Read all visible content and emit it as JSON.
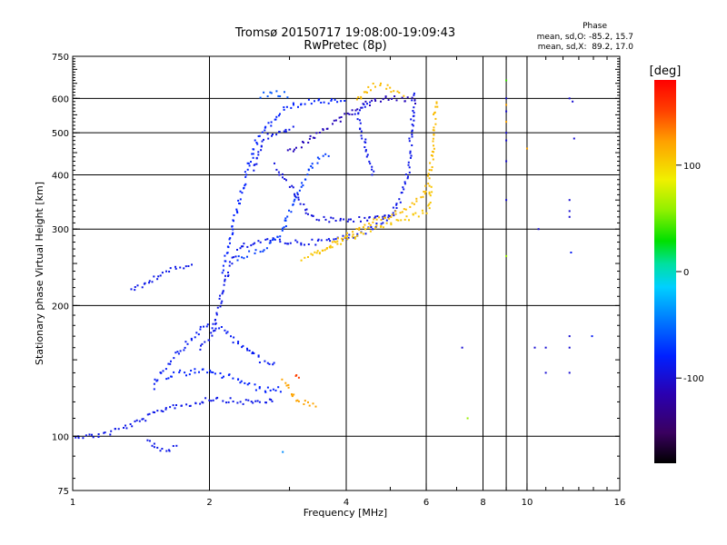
{
  "title": "Tromsø 20150717 19:08:00-19:09:43",
  "subtitle": "RwPretec (8p)",
  "phase_box": {
    "heading": "Phase",
    "line_o": "mean, sd,O: -85.2, 15.7",
    "line_x": "mean, sd,X:  89.2, 17.0"
  },
  "colorbar": {
    "title": "[deg]",
    "range": [
      -180,
      180
    ],
    "ticks": [
      {
        "value": 100,
        "label": "100"
      },
      {
        "value": 0,
        "label": "0"
      },
      {
        "value": -100,
        "label": "-100"
      }
    ]
  },
  "chart_data": {
    "type": "scatter",
    "xlabel": "Frequency [MHz]",
    "ylabel": "Stationary phase Virtual Height [km]",
    "x_scale": "log",
    "y_scale": "log",
    "xlim": [
      1,
      16
    ],
    "ylim": [
      75,
      750
    ],
    "grid": true,
    "x_ticks": [
      {
        "value": 1,
        "label": "1"
      },
      {
        "value": 2,
        "label": "2"
      },
      {
        "value": 4,
        "label": "4"
      },
      {
        "value": 6,
        "label": "6"
      },
      {
        "value": 8,
        "label": "8"
      },
      {
        "value": 10,
        "label": "10"
      },
      {
        "value": 16,
        "label": "16"
      }
    ],
    "x_grid": [
      2,
      4,
      6,
      8,
      9,
      10
    ],
    "y_ticks": [
      {
        "value": 75,
        "label": "75"
      },
      {
        "value": 100,
        "label": "100"
      },
      {
        "value": 200,
        "label": "200"
      },
      {
        "value": 300,
        "label": "300"
      },
      {
        "value": 400,
        "label": "400"
      },
      {
        "value": 500,
        "label": "500"
      },
      {
        "value": 600,
        "label": "600"
      },
      {
        "value": 750,
        "label": "750"
      }
    ],
    "y_grid": [
      100,
      200,
      300,
      400,
      500,
      600
    ],
    "traces": [
      {
        "phase": -90,
        "points": [
          [
            1.0,
            101
          ],
          [
            1.05,
            100
          ],
          [
            1.1,
            100
          ],
          [
            1.2,
            102
          ],
          [
            1.3,
            105
          ],
          [
            1.4,
            108
          ],
          [
            1.5,
            112
          ],
          [
            1.6,
            116
          ],
          [
            1.7,
            118
          ],
          [
            1.8,
            118
          ],
          [
            1.9,
            120
          ],
          [
            2.0,
            122
          ],
          [
            2.1,
            122
          ],
          [
            2.2,
            121
          ],
          [
            2.3,
            120
          ],
          [
            2.4,
            120
          ],
          [
            2.5,
            120
          ],
          [
            2.6,
            120
          ],
          [
            2.7,
            121
          ],
          [
            2.8,
            122
          ]
        ]
      },
      {
        "phase": -90,
        "points": [
          [
            1.35,
            215
          ],
          [
            1.4,
            220
          ],
          [
            1.45,
            225
          ],
          [
            1.5,
            230
          ],
          [
            1.55,
            235
          ],
          [
            1.6,
            240
          ],
          [
            1.7,
            243
          ],
          [
            1.8,
            246
          ],
          [
            1.85,
            248
          ]
        ]
      },
      {
        "phase": -85,
        "points": [
          [
            1.5,
            130
          ],
          [
            1.55,
            138
          ],
          [
            1.6,
            145
          ],
          [
            1.65,
            150
          ],
          [
            1.7,
            156
          ],
          [
            1.75,
            160
          ],
          [
            1.8,
            165
          ],
          [
            1.85,
            170
          ],
          [
            1.9,
            175
          ],
          [
            1.95,
            178
          ],
          [
            2.0,
            180
          ],
          [
            2.1,
            178
          ],
          [
            2.2,
            172
          ],
          [
            2.3,
            165
          ],
          [
            2.4,
            160
          ],
          [
            2.5,
            155
          ],
          [
            2.6,
            150
          ],
          [
            2.7,
            148
          ],
          [
            2.8,
            145
          ]
        ]
      },
      {
        "phase": -80,
        "points": [
          [
            1.6,
            135
          ],
          [
            1.7,
            140
          ],
          [
            1.8,
            140
          ],
          [
            1.9,
            142
          ],
          [
            2.0,
            140
          ],
          [
            2.1,
            138
          ],
          [
            2.2,
            138
          ],
          [
            2.3,
            136
          ],
          [
            2.4,
            132
          ],
          [
            2.5,
            130
          ],
          [
            2.6,
            128
          ],
          [
            2.7,
            128
          ],
          [
            2.8,
            128
          ],
          [
            2.9,
            128
          ]
        ]
      },
      {
        "phase": -90,
        "points": [
          [
            1.9,
            160
          ],
          [
            2.0,
            168
          ],
          [
            2.05,
            180
          ],
          [
            2.1,
            195
          ],
          [
            2.12,
            210
          ],
          [
            2.15,
            225
          ],
          [
            2.2,
            240
          ],
          [
            2.25,
            255
          ],
          [
            2.3,
            265
          ],
          [
            2.4,
            275
          ],
          [
            2.5,
            280
          ],
          [
            2.6,
            282
          ],
          [
            2.8,
            282
          ],
          [
            3.0,
            280
          ],
          [
            3.2,
            279
          ],
          [
            3.4,
            280
          ],
          [
            3.6,
            282
          ],
          [
            3.8,
            284
          ],
          [
            4.0,
            287
          ],
          [
            4.2,
            292
          ],
          [
            4.5,
            300
          ],
          [
            4.8,
            312
          ],
          [
            5.0,
            325
          ],
          [
            5.2,
            345
          ],
          [
            5.4,
            380
          ],
          [
            5.5,
            420
          ],
          [
            5.55,
            480
          ],
          [
            5.6,
            560
          ],
          [
            5.65,
            620
          ]
        ]
      },
      {
        "phase": -80,
        "points": [
          [
            2.15,
            240
          ],
          [
            2.2,
            270
          ],
          [
            2.25,
            300
          ],
          [
            2.3,
            330
          ],
          [
            2.35,
            360
          ],
          [
            2.4,
            390
          ],
          [
            2.45,
            420
          ],
          [
            2.5,
            450
          ],
          [
            2.55,
            480
          ],
          [
            2.6,
            500
          ],
          [
            2.7,
            520
          ],
          [
            2.8,
            540
          ],
          [
            2.9,
            560
          ],
          [
            3.0,
            575
          ],
          [
            3.2,
            585
          ],
          [
            3.4,
            590
          ],
          [
            3.6,
            592
          ],
          [
            3.8,
            590
          ],
          [
            4.0,
            588
          ]
        ]
      },
      {
        "phase": -70,
        "points": [
          [
            2.3,
            255
          ],
          [
            2.4,
            260
          ],
          [
            2.5,
            265
          ],
          [
            2.6,
            270
          ],
          [
            2.7,
            275
          ],
          [
            2.8,
            285
          ],
          [
            2.9,
            300
          ],
          [
            2.95,
            315
          ],
          [
            3.0,
            330
          ],
          [
            3.1,
            355
          ],
          [
            3.2,
            380
          ],
          [
            3.3,
            405
          ],
          [
            3.4,
            425
          ],
          [
            3.5,
            440
          ],
          [
            3.6,
            445
          ],
          [
            3.7,
            445
          ]
        ]
      },
      {
        "phase": -90,
        "points": [
          [
            2.5,
            410
          ],
          [
            2.55,
            440
          ],
          [
            2.6,
            470
          ],
          [
            2.7,
            490
          ],
          [
            2.8,
            500
          ],
          [
            2.9,
            505
          ],
          [
            3.0,
            510
          ],
          [
            3.1,
            515
          ]
        ]
      },
      {
        "phase": -95,
        "points": [
          [
            2.8,
            420
          ],
          [
            2.9,
            400
          ],
          [
            3.0,
            380
          ],
          [
            3.1,
            360
          ],
          [
            3.2,
            340
          ],
          [
            3.3,
            325
          ],
          [
            3.4,
            318
          ],
          [
            3.6,
            315
          ],
          [
            3.8,
            315
          ],
          [
            4.0,
            315
          ],
          [
            4.3,
            316
          ],
          [
            4.6,
            318
          ],
          [
            4.9,
            322
          ],
          [
            5.2,
            328
          ]
        ]
      },
      {
        "phase": -110,
        "points": [
          [
            3.0,
            450
          ],
          [
            3.2,
            470
          ],
          [
            3.5,
            500
          ],
          [
            3.8,
            530
          ],
          [
            4.0,
            550
          ],
          [
            4.3,
            575
          ],
          [
            4.6,
            592
          ],
          [
            5.0,
            600
          ],
          [
            5.5,
            595
          ],
          [
            5.8,
            590
          ]
        ]
      },
      {
        "phase": -90,
        "points": [
          [
            4.6,
            400
          ],
          [
            4.5,
            430
          ],
          [
            4.4,
            470
          ],
          [
            4.3,
            510
          ],
          [
            4.25,
            540
          ],
          [
            4.2,
            560
          ],
          [
            4.3,
            575
          ],
          [
            4.6,
            590
          ]
        ]
      },
      {
        "phase": 110,
        "points": [
          [
            3.5,
            262
          ],
          [
            3.7,
            275
          ],
          [
            3.9,
            285
          ],
          [
            4.1,
            293
          ],
          [
            4.3,
            300
          ],
          [
            4.5,
            308
          ],
          [
            4.7,
            315
          ],
          [
            5.0,
            322
          ],
          [
            5.3,
            330
          ],
          [
            5.5,
            340
          ],
          [
            5.8,
            352
          ],
          [
            6.0,
            370
          ],
          [
            6.1,
            390
          ],
          [
            6.15,
            420
          ],
          [
            6.2,
            470
          ],
          [
            6.25,
            520
          ],
          [
            6.3,
            560
          ],
          [
            6.35,
            600
          ]
        ]
      },
      {
        "phase": 105,
        "points": [
          [
            3.2,
            255
          ],
          [
            3.4,
            262
          ],
          [
            3.6,
            270
          ],
          [
            3.9,
            280
          ],
          [
            4.2,
            290
          ],
          [
            4.5,
            298
          ],
          [
            4.8,
            305
          ],
          [
            5.2,
            312
          ],
          [
            5.5,
            318
          ],
          [
            5.8,
            325
          ],
          [
            6.0,
            330
          ],
          [
            6.1,
            345
          ],
          [
            6.15,
            380
          ]
        ]
      },
      {
        "phase": 120,
        "points": [
          [
            2.9,
            135
          ],
          [
            3.0,
            128
          ],
          [
            3.05,
            124
          ],
          [
            3.1,
            122
          ],
          [
            3.2,
            120
          ],
          [
            3.3,
            119
          ],
          [
            3.4,
            118
          ],
          [
            3.5,
            118
          ]
        ]
      },
      {
        "phase": 110,
        "points": [
          [
            4.2,
            590
          ],
          [
            4.4,
            620
          ],
          [
            4.6,
            640
          ],
          [
            4.8,
            640
          ],
          [
            5.0,
            632
          ],
          [
            5.2,
            620
          ],
          [
            5.4,
            610
          ]
        ]
      },
      {
        "phase": 150,
        "points": [
          [
            3.1,
            140
          ],
          [
            3.15,
            135
          ]
        ]
      },
      {
        "phase": -90,
        "points": [
          [
            1.45,
            98
          ],
          [
            1.5,
            95
          ],
          [
            1.6,
            92
          ],
          [
            1.7,
            96
          ]
        ]
      },
      {
        "phase": -60,
        "points": [
          [
            2.6,
            610
          ],
          [
            2.8,
            615
          ],
          [
            3.0,
            610
          ]
        ]
      }
    ],
    "scatter": [
      {
        "phase": -100,
        "points": [
          [
            9.0,
            600
          ],
          [
            9.0,
            560
          ],
          [
            9.0,
            500
          ],
          [
            9.0,
            480
          ],
          [
            9.0,
            430
          ],
          [
            9.0,
            350
          ],
          [
            12.4,
            600
          ],
          [
            12.4,
            350
          ],
          [
            12.4,
            330
          ],
          [
            12.4,
            320
          ],
          [
            12.4,
            170
          ],
          [
            12.4,
            160
          ],
          [
            12.4,
            140
          ],
          [
            11.0,
            160
          ],
          [
            11.0,
            140
          ],
          [
            10.4,
            160
          ],
          [
            7.2,
            160
          ],
          [
            10.6,
            300
          ],
          [
            12.6,
            590
          ],
          [
            12.7,
            485
          ]
        ]
      },
      {
        "phase": 60,
        "points": [
          [
            9.0,
            260
          ],
          [
            7.4,
            110
          ]
        ]
      },
      {
        "phase": 40,
        "points": [
          [
            9.0,
            660
          ]
        ]
      },
      {
        "phase": 120,
        "points": [
          [
            9.0,
            580
          ],
          [
            9.0,
            530
          ],
          [
            10.0,
            460
          ]
        ]
      },
      {
        "phase": -40,
        "points": [
          [
            2.9,
            92
          ]
        ]
      },
      {
        "phase": -85,
        "points": [
          [
            12.5,
            265
          ],
          [
            13.9,
            170
          ]
        ]
      }
    ]
  }
}
